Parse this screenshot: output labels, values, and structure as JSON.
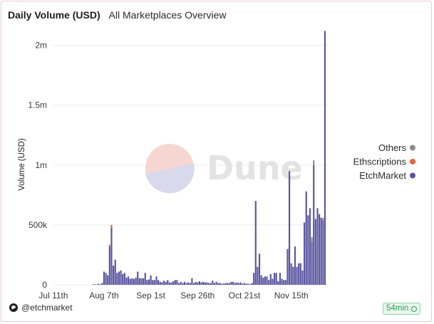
{
  "header": {
    "title": "Daily Volume (USD)",
    "subtitle": "All Marketplaces Overview"
  },
  "watermark": {
    "text": "Dune"
  },
  "footer": {
    "author": "@etchmarket",
    "freshness": "54min"
  },
  "colors": {
    "EtchMarket": "#5a55a0",
    "Ethscriptions": "#e9633a",
    "Others": "#8c8c8c",
    "grid": "#ececec"
  },
  "chart_data": {
    "type": "bar",
    "stacked": true,
    "ylabel": "Volume (USD)",
    "xlabel": "",
    "ylim": [
      0,
      2200000
    ],
    "yticks": [
      0,
      500000,
      1000000,
      1500000,
      2000000
    ],
    "ytick_labels": [
      "0",
      "500k",
      "1m",
      "1.5m",
      "2m"
    ],
    "xticks": [
      "Jul 11th",
      "Aug 7th",
      "Sep 1st",
      "Sep 26th",
      "Oct 21st",
      "Nov 15th"
    ],
    "xtick_positions": [
      0,
      27,
      52,
      77,
      102,
      127
    ],
    "legend": {
      "position": "right",
      "entries": [
        "Others",
        "Ethscriptions",
        "EtchMarket"
      ]
    },
    "series": [
      {
        "name": "EtchMarket",
        "values": [
          0,
          0,
          0,
          0,
          0,
          0,
          0,
          0,
          0,
          0,
          0,
          0,
          0,
          0,
          0,
          0,
          0,
          0,
          0,
          0,
          0,
          2000,
          5000,
          3000,
          8000,
          5000,
          15000,
          110000,
          100000,
          80000,
          320000,
          480000,
          160000,
          210000,
          100000,
          110000,
          120000,
          90000,
          100000,
          60000,
          70000,
          50000,
          55000,
          50000,
          60000,
          110000,
          55000,
          55000,
          55000,
          100000,
          40000,
          45000,
          80000,
          40000,
          40000,
          70000,
          40000,
          25000,
          20000,
          35000,
          25000,
          40000,
          20000,
          20000,
          30000,
          40000,
          40000,
          15000,
          25000,
          15000,
          25000,
          15000,
          20000,
          15000,
          55000,
          15000,
          25000,
          20000,
          30000,
          20000,
          25000,
          20000,
          20000,
          15000,
          15000,
          35000,
          15000,
          25000,
          15000,
          15000,
          10000,
          10000,
          15000,
          15000,
          15000,
          25000,
          25000,
          15000,
          20000,
          15000,
          20000,
          10000,
          15000,
          10000,
          10000,
          5000,
          15000,
          100000,
          700000,
          150000,
          260000,
          80000,
          60000,
          70000,
          70000,
          40000,
          90000,
          50000,
          100000,
          100000,
          30000,
          100000,
          50000,
          40000,
          40000,
          300000,
          950000,
          180000,
          150000,
          320000,
          150000,
          180000,
          180000,
          120000,
          520000,
          780000,
          580000,
          640000,
          360000,
          1000000,
          550000,
          640000,
          590000,
          560000,
          540000,
          2120000
        ]
      },
      {
        "name": "Ethscriptions",
        "values": [
          0,
          0,
          0,
          0,
          0,
          0,
          0,
          0,
          0,
          0,
          0,
          0,
          0,
          0,
          0,
          0,
          0,
          0,
          0,
          0,
          0,
          0,
          0,
          0,
          0,
          0,
          0,
          0,
          0,
          0,
          15000,
          20000,
          0,
          0,
          0,
          0,
          0,
          0,
          0,
          0,
          0,
          0,
          0,
          0,
          0,
          0,
          0,
          0,
          0,
          0,
          0,
          0,
          0,
          0,
          0,
          0,
          0,
          0,
          0,
          0,
          0,
          0,
          0,
          0,
          0,
          0,
          0,
          0,
          0,
          0,
          0,
          0,
          0,
          0,
          0,
          0,
          0,
          0,
          0,
          0,
          0,
          0,
          0,
          0,
          0,
          0,
          0,
          0,
          0,
          0,
          0,
          0,
          0,
          0,
          0,
          0,
          0,
          0,
          0,
          0,
          0,
          0,
          0,
          0,
          0,
          0,
          0,
          0,
          0,
          0,
          0,
          0,
          0,
          0,
          0,
          0,
          0,
          0,
          0,
          0,
          0,
          0,
          0,
          0,
          0,
          0,
          0,
          0,
          0,
          0,
          0,
          0,
          0,
          0,
          0,
          0,
          0,
          0,
          0,
          0,
          0,
          0,
          0,
          0,
          0,
          0,
          0,
          0,
          0,
          0
        ]
      },
      {
        "name": "Others",
        "values": [
          0,
          0,
          0,
          0,
          0,
          0,
          0,
          0,
          0,
          0,
          0,
          0,
          0,
          0,
          0,
          0,
          0,
          0,
          0,
          0,
          0,
          0,
          0,
          0,
          0,
          0,
          0,
          0,
          0,
          0,
          0,
          0,
          0,
          0,
          0,
          0,
          0,
          0,
          0,
          0,
          0,
          0,
          0,
          0,
          0,
          0,
          0,
          0,
          0,
          0,
          0,
          0,
          0,
          0,
          0,
          0,
          0,
          0,
          0,
          0,
          0,
          0,
          0,
          0,
          0,
          0,
          0,
          0,
          0,
          0,
          0,
          0,
          0,
          0,
          0,
          0,
          0,
          0,
          0,
          0,
          0,
          0,
          0,
          0,
          0,
          0,
          0,
          0,
          0,
          0,
          0,
          0,
          0,
          0,
          0,
          0,
          0,
          0,
          0,
          0,
          0,
          0,
          0,
          0,
          0,
          0,
          0,
          0,
          0,
          0,
          0,
          0,
          0,
          0,
          0,
          0,
          0,
          0,
          0,
          0,
          0,
          0,
          0,
          0,
          0,
          0,
          0,
          0,
          0,
          0,
          0,
          0,
          0,
          0,
          0,
          0,
          0,
          0,
          40000,
          40000,
          0,
          0,
          0,
          0,
          20000,
          0,
          0,
          80000,
          50000,
          60000,
          20000
        ]
      }
    ]
  }
}
